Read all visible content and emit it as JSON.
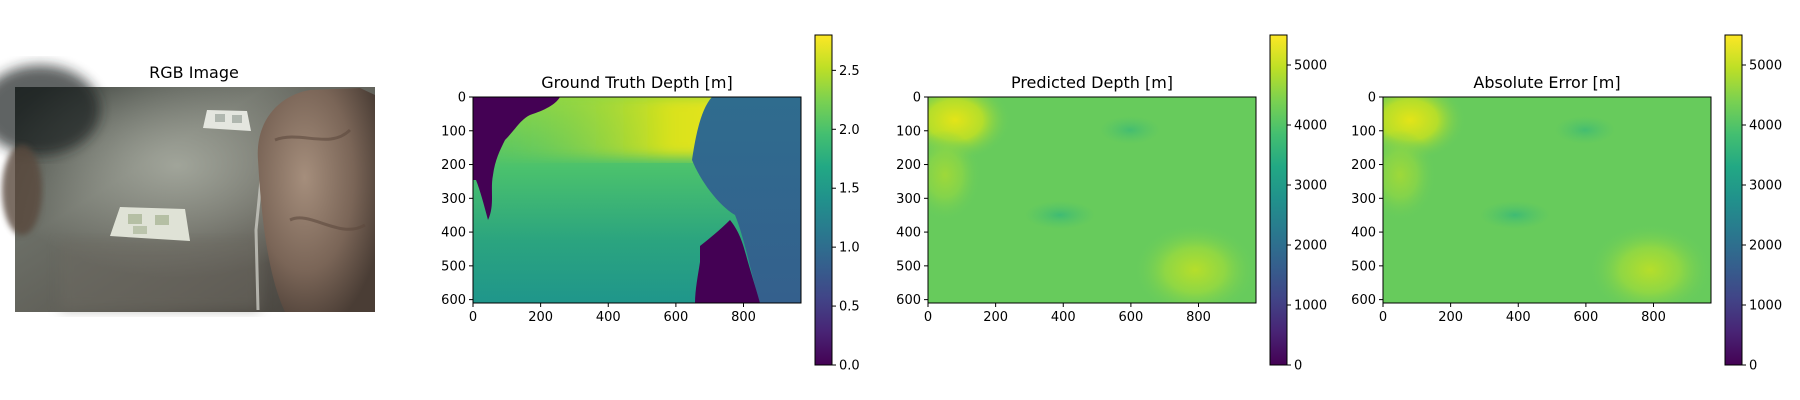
{
  "chart_data": [
    {
      "type": "image",
      "title": "RGB Image",
      "axes": "off",
      "annotations": [
        "rocky seabed",
        "two white calibration markers",
        "rope on ground",
        "large rock at right"
      ]
    },
    {
      "type": "heatmap",
      "title": "Ground Truth Depth [m]",
      "colormap": "viridis",
      "image_width": 970,
      "image_height": 610,
      "xticks": [
        0,
        200,
        400,
        600,
        800
      ],
      "yticks": [
        0,
        100,
        200,
        300,
        400,
        500,
        600
      ],
      "colorbar": {
        "ticks": [
          0.0,
          0.5,
          1.0,
          1.5,
          2.0,
          2.5
        ],
        "range": [
          0.0,
          2.8
        ]
      },
      "value_range": [
        0.0,
        2.78
      ],
      "description_regions": [
        "invalid (0) region top-left",
        "invalid (0) region bottom-center",
        "high values top-center",
        "low values right side"
      ]
    },
    {
      "type": "heatmap",
      "title": "Predicted Depth [m]",
      "colormap": "viridis",
      "image_width": 970,
      "image_height": 610,
      "xticks": [
        0,
        200,
        400,
        600,
        800
      ],
      "yticks": [
        0,
        100,
        200,
        300,
        400,
        500,
        600
      ],
      "colorbar": {
        "ticks": [
          0,
          1000,
          2000,
          3000,
          4000,
          5000
        ],
        "range": [
          0,
          5500
        ]
      },
      "value_range": [
        3500,
        5500
      ]
    },
    {
      "type": "heatmap",
      "title": "Absolute Error [m]",
      "colormap": "viridis",
      "image_width": 970,
      "image_height": 610,
      "xticks": [
        0,
        200,
        400,
        600,
        800
      ],
      "yticks": [
        0,
        100,
        200,
        300,
        400,
        500,
        600
      ],
      "colorbar": {
        "ticks": [
          0,
          1000,
          2000,
          3000,
          4000,
          5000
        ],
        "range": [
          0,
          5500
        ]
      },
      "value_range": [
        3500,
        5500
      ]
    }
  ]
}
